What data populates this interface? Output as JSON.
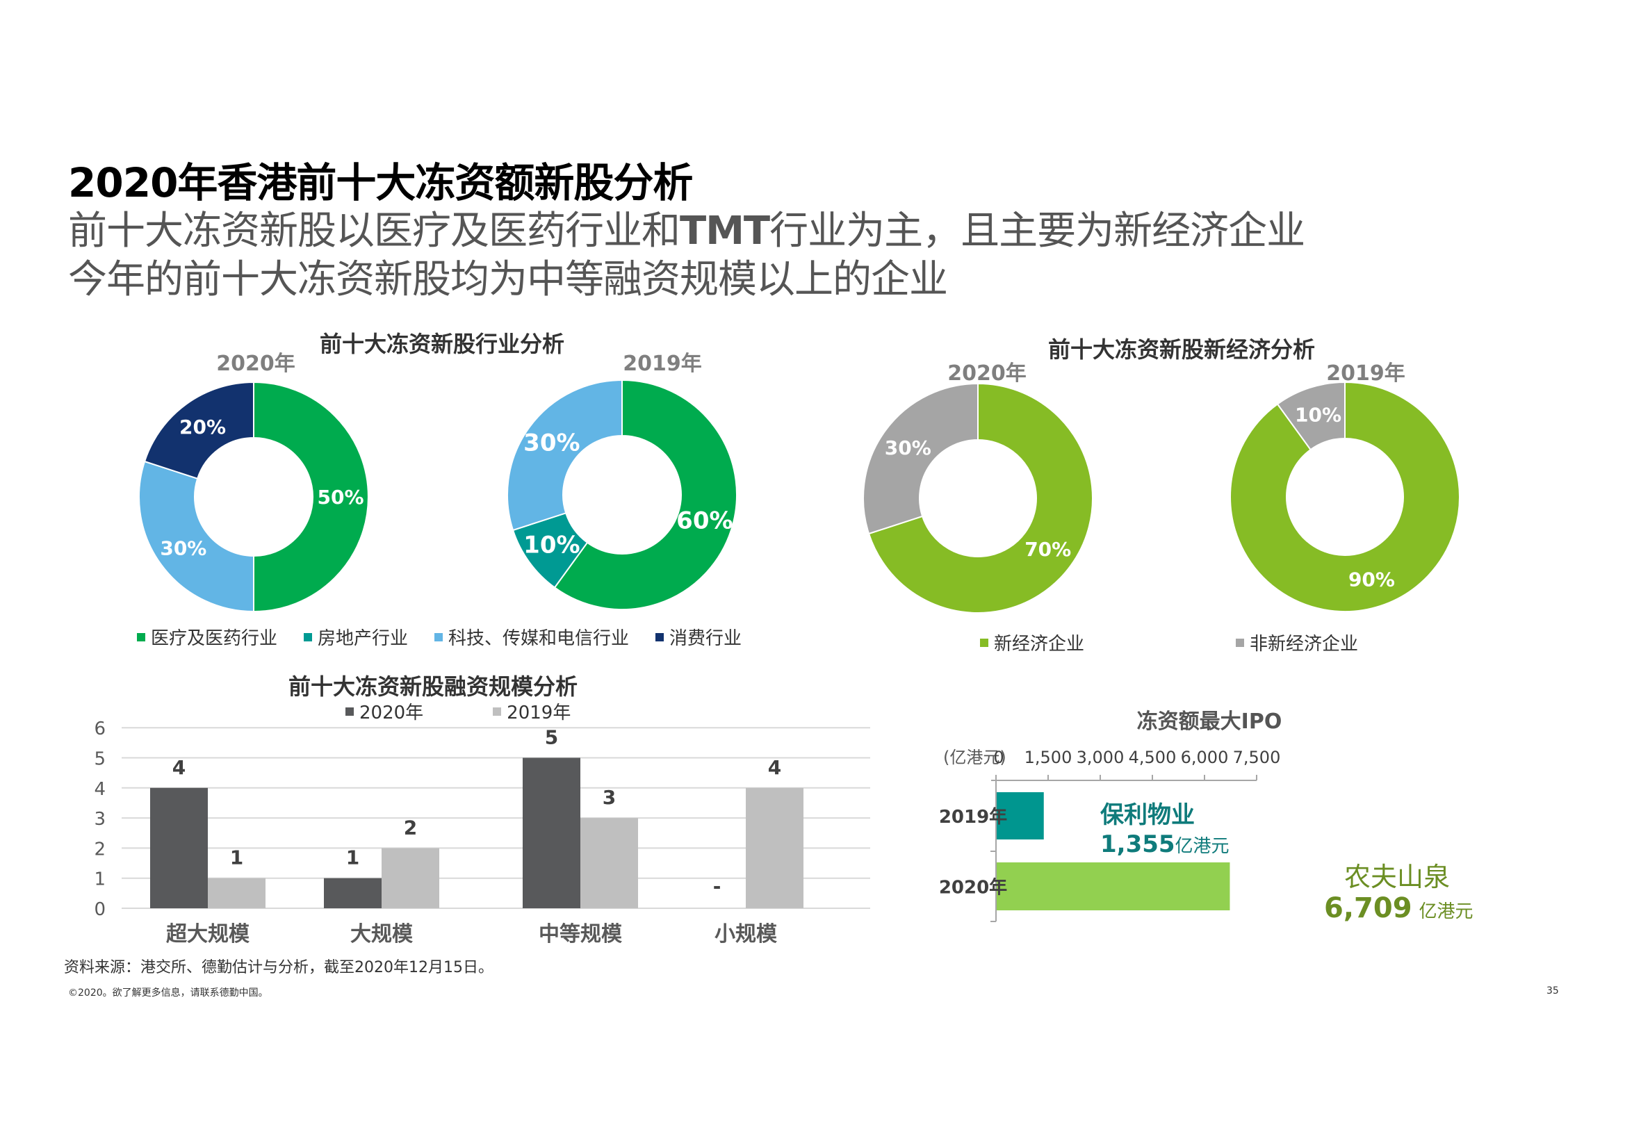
{
  "header": {
    "title": "2020年香港前十大冻资额新股分析",
    "subtitle_line1_a": "前十大冻资新股以医疗及医药行业和",
    "subtitle_line1_b": "TMT",
    "subtitle_line1_c": "行业为主，且主要为新经济企业",
    "subtitle_line2": "今年的前十大冻资新股均为中等融资规模以上的企业"
  },
  "colors": {
    "healthcare": "#00AB4E",
    "real_estate": "#009A93",
    "tmt": "#62B5E5",
    "consumer": "#12326E",
    "new_economy": "#86BC25",
    "non_new_economy": "#A5A5A5",
    "bar_2020": "#58595B",
    "bar_2019": "#BFBFBF",
    "ipo_2019": "#00968F",
    "ipo_2020": "#92D050",
    "ipo_2019_text": "#0F7B7B",
    "ipo_2020_text": "#6B8E23"
  },
  "chart_data": [
    {
      "type": "pie",
      "variant": "donut",
      "title": "前十大冻资新股行业分析",
      "subtitle": "2020年",
      "categories": [
        "医疗及医药行业",
        "消费行业",
        "科技、传媒和电信行业"
      ],
      "values": [
        50,
        20,
        30
      ],
      "labels": [
        "50%",
        "20%",
        "30%"
      ],
      "legend": [
        "医疗及医药行业",
        "房地产行业",
        "科技、传媒和电信行业",
        "消费行业"
      ],
      "legend_position": "bottom"
    },
    {
      "type": "pie",
      "variant": "donut",
      "title": "前十大冻资新股行业分析",
      "subtitle": "2019年",
      "categories": [
        "医疗及医药行业",
        "科技、传媒和电信行业",
        "房地产行业"
      ],
      "values": [
        60,
        30,
        10
      ],
      "labels": [
        "60%",
        "30%",
        "10%"
      ],
      "legend": [
        "医疗及医药行业",
        "房地产行业",
        "科技、传媒和电信行业",
        "消费行业"
      ],
      "legend_position": "bottom"
    },
    {
      "type": "pie",
      "variant": "donut",
      "title": "前十大冻资新股新经济分析",
      "subtitle": "2020年",
      "categories": [
        "新经济企业",
        "非新经济企业"
      ],
      "values": [
        70,
        30
      ],
      "labels": [
        "70%",
        "30%"
      ],
      "legend": [
        "新经济企业",
        "非新经济企业"
      ],
      "legend_position": "bottom"
    },
    {
      "type": "pie",
      "variant": "donut",
      "title": "前十大冻资新股新经济分析",
      "subtitle": "2019年",
      "categories": [
        "新经济企业",
        "非新经济企业"
      ],
      "values": [
        90,
        10
      ],
      "labels": [
        "90%",
        "10%"
      ],
      "legend": [
        "新经济企业",
        "非新经济企业"
      ],
      "legend_position": "bottom"
    },
    {
      "type": "bar",
      "title": "前十大冻资新股融资规模分析",
      "categories": [
        "超大规模",
        "大规模",
        "中等规模",
        "小规模"
      ],
      "series": [
        {
          "name": "2020年",
          "values": [
            4,
            1,
            5,
            0
          ],
          "labels": [
            "4",
            "1",
            "5",
            "-"
          ]
        },
        {
          "name": "2019年",
          "values": [
            1,
            2,
            3,
            4
          ],
          "labels": [
            "1",
            "2",
            "3",
            "4"
          ]
        }
      ],
      "yticks": [
        "0",
        "1",
        "2",
        "3",
        "4",
        "5",
        "6"
      ],
      "ylim": [
        0,
        6
      ],
      "grid": true,
      "legend_position": "top",
      "xlabel": "",
      "ylabel": ""
    },
    {
      "type": "bar",
      "orientation": "horizontal",
      "title": "冻资额最大IPO",
      "unit_label": "(亿港元)",
      "categories": [
        "2019年",
        "2020年"
      ],
      "values": [
        1355,
        6709
      ],
      "value_labels": [
        "1,355",
        "6,709"
      ],
      "value_units": [
        "亿港元",
        "亿港元"
      ],
      "company_labels": [
        "保利物业",
        "农夫山泉"
      ],
      "xticks": [
        "0",
        "1,500",
        "3,000",
        "4,500",
        "6,000",
        "7,500"
      ],
      "xlim": [
        0,
        7500
      ]
    }
  ],
  "industry": {
    "title": "前十大冻资新股行业分析",
    "year_2020": "2020年",
    "year_2019": "2019年",
    "legend": [
      {
        "label": "医疗及医药行业",
        "color": "#00AB4E"
      },
      {
        "label": "房地产行业",
        "color": "#009A93"
      },
      {
        "label": "科技、传媒和电信行业",
        "color": "#62B5E5"
      },
      {
        "label": "消费行业",
        "color": "#12326E"
      }
    ]
  },
  "economy": {
    "title": "前十大冻资新股新经济分析",
    "year_2020": "2020年",
    "year_2019": "2019年",
    "legend": [
      {
        "label": "新经济企业",
        "color": "#86BC25"
      },
      {
        "label": "非新经济企业",
        "color": "#A5A5A5"
      }
    ]
  },
  "scale": {
    "title": "前十大冻资新股融资规模分析",
    "legend": [
      {
        "label": "2020年",
        "color": "#58595B"
      },
      {
        "label": "2019年",
        "color": "#BFBFBF"
      }
    ]
  },
  "ipo": {
    "title": "冻资额最大IPO",
    "unit": "(亿港元)",
    "rows": [
      {
        "year": "2019年",
        "company": "保利物业",
        "value": "1,355",
        "unit": "亿港元"
      },
      {
        "year": "2020年",
        "company": "农夫山泉",
        "value": "6,709",
        "unit": "亿港元"
      }
    ]
  },
  "footer": {
    "source": "资料来源：港交所、德勤估计与分析，截至2020年12月15日。",
    "copyright": "©2020。欲了解更多信息，请联系德勤中国。",
    "page_number": "35"
  }
}
